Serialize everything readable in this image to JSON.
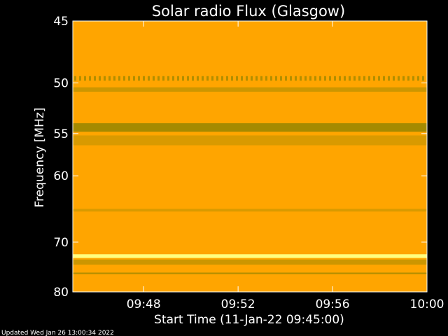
{
  "chart_data": {
    "type": "heatmap",
    "title": "Solar radio Flux (Glasgow)",
    "xlabel": "Start Time (11-Jan-22 09:45:00)",
    "ylabel": "Frequency [MHz]",
    "footer": "Updated Wed Jan 26 13:00:34 2022",
    "x_unit": "time",
    "xlim": [
      "09:45:00",
      "10:00:00"
    ],
    "x_ticks": [
      "09:48",
      "09:52",
      "09:56",
      "10:00"
    ],
    "y_ticks": [
      45,
      50,
      55,
      60,
      70,
      80
    ],
    "ylim": [
      45,
      80
    ],
    "y_scale": "reciprocal",
    "y_inverted": true,
    "grid": false,
    "colormap": [
      "#7f7f00",
      "#ffa500",
      "#ffff80"
    ],
    "bands": [
      {
        "freq_low": 49.4,
        "freq_high": 49.8,
        "level": 0.2,
        "style": "dotted"
      },
      {
        "freq_low": 50.4,
        "freq_high": 50.8,
        "level": 0.3
      },
      {
        "freq_low": 53.9,
        "freq_high": 54.8,
        "level": 0.15
      },
      {
        "freq_low": 55.2,
        "freq_high": 56.3,
        "level": 0.35
      },
      {
        "freq_low": 64.6,
        "freq_high": 65.0,
        "level": 0.35
      },
      {
        "freq_low": 72.2,
        "freq_high": 72.9,
        "level": 1.0
      },
      {
        "freq_low": 73.2,
        "freq_high": 74.2,
        "level": 0.3
      },
      {
        "freq_low": 75.8,
        "freq_high": 76.1,
        "level": 0.2
      }
    ]
  }
}
